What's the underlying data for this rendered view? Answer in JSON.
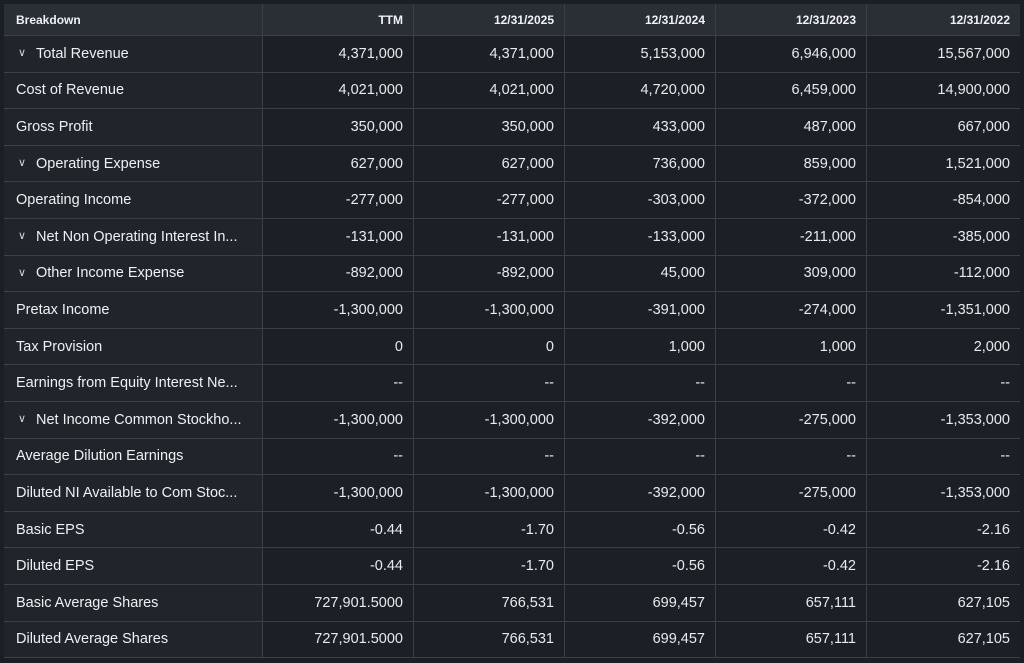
{
  "header": {
    "breakdown": "Breakdown",
    "periods": [
      "TTM",
      "12/31/2025",
      "12/31/2024",
      "12/31/2023",
      "12/31/2022"
    ]
  },
  "rows": [
    {
      "label": "Total Revenue",
      "expandable": true,
      "values": [
        "4,371,000",
        "4,371,000",
        "5,153,000",
        "6,946,000",
        "15,567,000"
      ]
    },
    {
      "label": "Cost of Revenue",
      "expandable": false,
      "values": [
        "4,021,000",
        "4,021,000",
        "4,720,000",
        "6,459,000",
        "14,900,000"
      ]
    },
    {
      "label": "Gross Profit",
      "expandable": false,
      "values": [
        "350,000",
        "350,000",
        "433,000",
        "487,000",
        "667,000"
      ]
    },
    {
      "label": "Operating Expense",
      "expandable": true,
      "values": [
        "627,000",
        "627,000",
        "736,000",
        "859,000",
        "1,521,000"
      ]
    },
    {
      "label": "Operating Income",
      "expandable": false,
      "values": [
        "-277,000",
        "-277,000",
        "-303,000",
        "-372,000",
        "-854,000"
      ]
    },
    {
      "label": "Net Non Operating Interest In...",
      "expandable": true,
      "values": [
        "-131,000",
        "-131,000",
        "-133,000",
        "-211,000",
        "-385,000"
      ]
    },
    {
      "label": "Other Income Expense",
      "expandable": true,
      "values": [
        "-892,000",
        "-892,000",
        "45,000",
        "309,000",
        "-112,000"
      ]
    },
    {
      "label": "Pretax Income",
      "expandable": false,
      "values": [
        "-1,300,000",
        "-1,300,000",
        "-391,000",
        "-274,000",
        "-1,351,000"
      ]
    },
    {
      "label": "Tax Provision",
      "expandable": false,
      "values": [
        "0",
        "0",
        "1,000",
        "1,000",
        "2,000"
      ]
    },
    {
      "label": "Earnings from Equity Interest Ne...",
      "expandable": false,
      "values": [
        "--",
        "--",
        "--",
        "--",
        "--"
      ]
    },
    {
      "label": "Net Income Common Stockho...",
      "expandable": true,
      "values": [
        "-1,300,000",
        "-1,300,000",
        "-392,000",
        "-275,000",
        "-1,353,000"
      ]
    },
    {
      "label": "Average Dilution Earnings",
      "expandable": false,
      "values": [
        "--",
        "--",
        "--",
        "--",
        "--"
      ]
    },
    {
      "label": "Diluted NI Available to Com Stoc...",
      "expandable": false,
      "values": [
        "-1,300,000",
        "-1,300,000",
        "-392,000",
        "-275,000",
        "-1,353,000"
      ]
    },
    {
      "label": "Basic EPS",
      "expandable": false,
      "values": [
        "-0.44",
        "-1.70",
        "-0.56",
        "-0.42",
        "-2.16"
      ]
    },
    {
      "label": "Diluted EPS",
      "expandable": false,
      "values": [
        "-0.44",
        "-1.70",
        "-0.56",
        "-0.42",
        "-2.16"
      ]
    },
    {
      "label": "Basic Average Shares",
      "expandable": false,
      "values": [
        "727,901.5000",
        "766,531",
        "699,457",
        "657,111",
        "627,105"
      ]
    },
    {
      "label": "Diluted Average Shares",
      "expandable": false,
      "values": [
        "727,901.5000",
        "766,531",
        "699,457",
        "657,111",
        "627,105"
      ]
    }
  ],
  "icons": {
    "expand": "chevron-down-icon"
  },
  "colors": {
    "background": "#1b1e24",
    "header_bg": "#2a2e35",
    "label_bg": "#21252b",
    "cell_bg": "#1c1f25",
    "grid_line": "#3a3f48",
    "text": "#e8eaed"
  }
}
